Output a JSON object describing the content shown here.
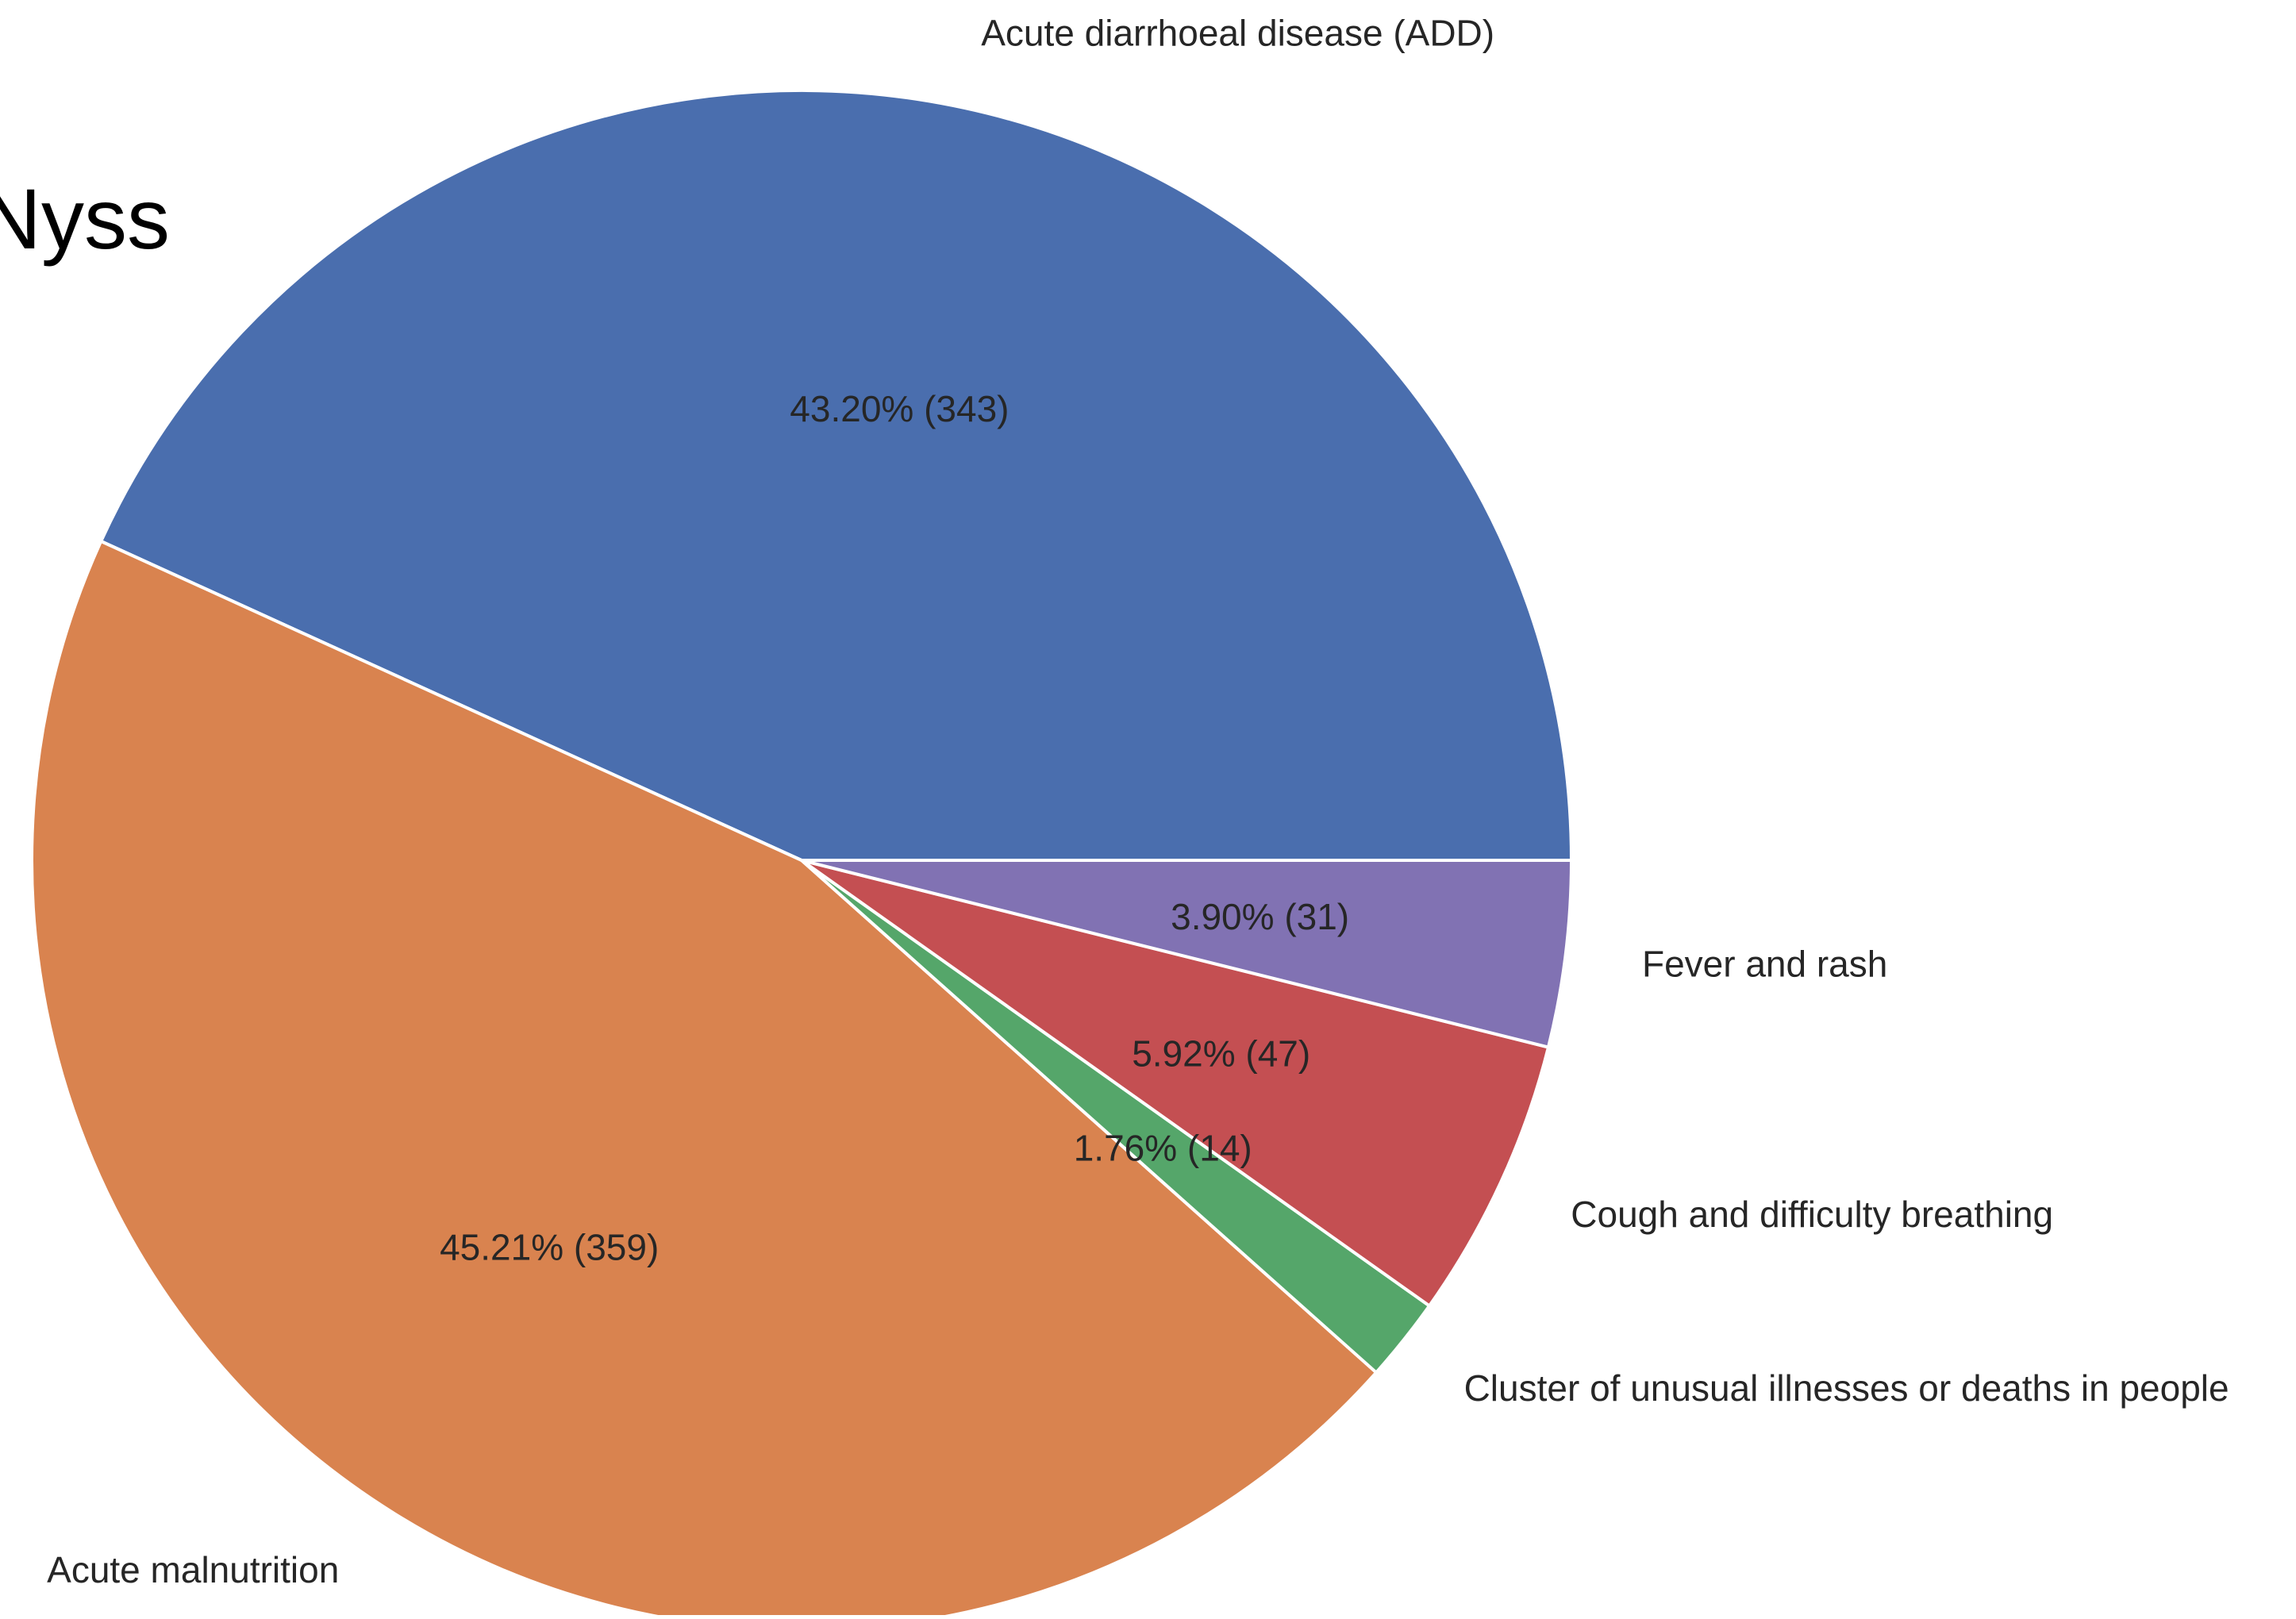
{
  "title_fragment": "Nyss",
  "chart_data": {
    "type": "pie",
    "slices": [
      {
        "label": "Acute diarrhoeal disease (ADD)",
        "value": 343,
        "percent_label": "43.20%  (343)",
        "color": "#4a6eae"
      },
      {
        "label": "Acute malnutrition",
        "value": 359,
        "percent_label": "45.21%  (359)",
        "color": "#d9834f"
      },
      {
        "label": "Cluster of unusual illnesses or deaths in people",
        "value": 14,
        "percent_label": "1.76%  (14)",
        "color": "#55a66a"
      },
      {
        "label": "Cough and difficulty breathing",
        "value": 47,
        "percent_label": "5.92%  (47)",
        "color": "#c44f52"
      },
      {
        "label": "Fever and rash",
        "value": 31,
        "percent_label": "3.90%  (31)",
        "color": "#8172b3"
      }
    ],
    "start_angle_deg": 0,
    "direction": "counterclockwise",
    "wedge_edge_color": "#ffffff",
    "legend": "none"
  }
}
